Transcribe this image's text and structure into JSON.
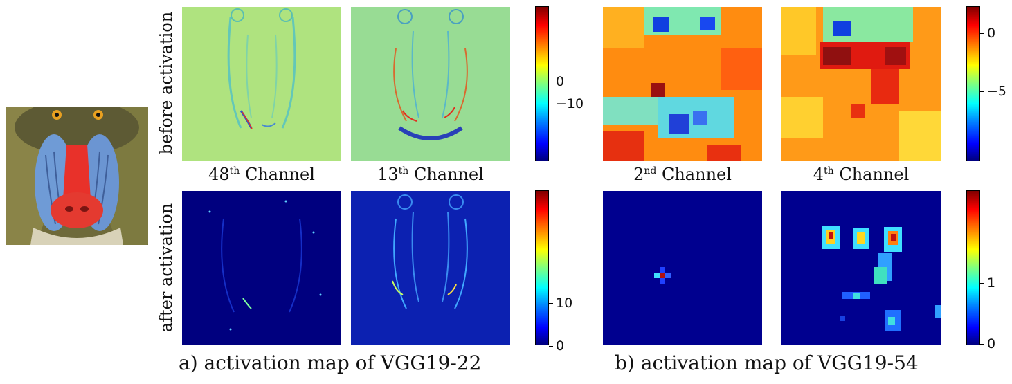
{
  "row_labels": {
    "before": "before activation",
    "after": "after activation"
  },
  "channel_labels": [
    {
      "num": "48",
      "sup": "th",
      "text": "Channel"
    },
    {
      "num": "13",
      "sup": "th",
      "text": "Channel"
    },
    {
      "num": "2",
      "sup": "nd",
      "text": "Channel"
    },
    {
      "num": "4",
      "sup": "th",
      "text": "Channel"
    }
  ],
  "colorbars": {
    "vgg22_before": [
      "0",
      "−10"
    ],
    "vgg22_after": [
      "10",
      "0"
    ],
    "vgg54_before": [
      "0",
      "−5"
    ],
    "vgg54_after": [
      "1",
      "0"
    ]
  },
  "captions": {
    "a": "a) activation map of  VGG19-22",
    "b": "b) activation map of  VGG19-54"
  },
  "colors": {
    "jet_dark_blue": "#00007f",
    "jet_dark_red": "#7f0000"
  }
}
